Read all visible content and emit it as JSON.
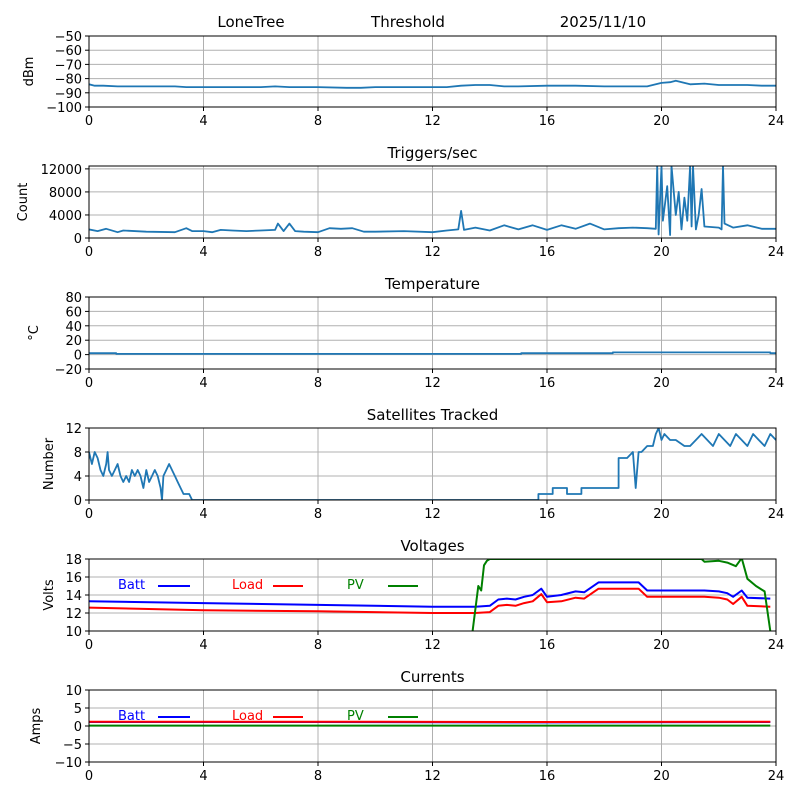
{
  "header": {
    "station": "LoneTree",
    "mode": "Threshold",
    "date": "2025/11/10"
  },
  "chart_data": [
    {
      "id": "signal",
      "type": "line",
      "title": "",
      "xlabel": "",
      "ylabel": "dBm",
      "xlim": [
        0,
        24
      ],
      "ylim": [
        -100,
        -50
      ],
      "xticks": [
        0,
        4,
        8,
        12,
        16,
        20,
        24
      ],
      "yticks": [
        -100,
        -90,
        -80,
        -70,
        -60,
        -50
      ],
      "ytick_labels": [
        "−100",
        "−90",
        "−80",
        "−70",
        "−60",
        "−50"
      ],
      "grid": true,
      "series": [
        {
          "name": "dBm",
          "color": "#1f77b4",
          "x": [
            0,
            0.2,
            0.5,
            1.0,
            2.0,
            3.0,
            3.4,
            4.0,
            5.0,
            6.0,
            6.5,
            7.0,
            8.0,
            9.0,
            9.5,
            10.0,
            11.0,
            12.0,
            12.5,
            13.0,
            13.5,
            14.0,
            14.5,
            15.0,
            16.0,
            17.0,
            18.0,
            19.0,
            19.5,
            19.8,
            20.0,
            20.3,
            20.5,
            20.8,
            21.0,
            21.5,
            22.0,
            22.5,
            23.0,
            23.5,
            24.0
          ],
          "y": [
            -84,
            -85,
            -85,
            -85.5,
            -85.5,
            -85.5,
            -86,
            -86,
            -86,
            -86,
            -85.5,
            -86,
            -86,
            -86.5,
            -86.5,
            -86,
            -86,
            -86,
            -86,
            -85,
            -84.5,
            -84.5,
            -85.5,
            -85.5,
            -85,
            -85,
            -85.5,
            -85.5,
            -85.5,
            -84,
            -83,
            -82.5,
            -81.5,
            -83,
            -84,
            -83.5,
            -84.5,
            -84.5,
            -84.5,
            -85,
            -85
          ]
        }
      ]
    },
    {
      "id": "triggers",
      "type": "line",
      "title": "Triggers/sec",
      "xlabel": "",
      "ylabel": "Count",
      "xlim": [
        0,
        24
      ],
      "ylim": [
        0,
        12500
      ],
      "xticks": [
        0,
        4,
        8,
        12,
        16,
        20,
        24
      ],
      "yticks": [
        0,
        4000,
        8000,
        12000
      ],
      "ytick_labels": [
        "0",
        "4000",
        "8000",
        "12000"
      ],
      "grid": true,
      "series": [
        {
          "name": "Count",
          "color": "#1f77b4",
          "x": [
            0,
            0.3,
            0.6,
            1.0,
            1.2,
            2.0,
            3.0,
            3.4,
            3.6,
            4.0,
            4.3,
            4.6,
            5.0,
            5.5,
            6.0,
            6.5,
            6.6,
            6.8,
            7.0,
            7.2,
            7.5,
            8.0,
            8.4,
            8.8,
            9.2,
            9.6,
            10.0,
            11.0,
            12.0,
            12.5,
            12.9,
            13.0,
            13.1,
            13.5,
            14.0,
            14.5,
            15.0,
            15.5,
            16.0,
            16.5,
            17.0,
            17.5,
            18.0,
            18.5,
            19.0,
            19.5,
            19.8,
            19.85,
            19.9,
            20.0,
            20.05,
            20.2,
            20.3,
            20.35,
            20.5,
            20.6,
            20.7,
            20.8,
            20.9,
            21.0,
            21.05,
            21.1,
            21.2,
            21.3,
            21.4,
            21.5,
            22.0,
            22.1,
            22.15,
            22.2,
            22.5,
            23.0,
            23.5,
            24.0
          ],
          "y": [
            1500,
            1200,
            1600,
            1000,
            1300,
            1100,
            1000,
            1700,
            1200,
            1200,
            1000,
            1400,
            1300,
            1200,
            1300,
            1400,
            2500,
            1200,
            2500,
            1200,
            1100,
            1000,
            1700,
            1600,
            1700,
            1100,
            1100,
            1200,
            1000,
            1300,
            1500,
            4700,
            1400,
            1800,
            1300,
            2200,
            1500,
            2200,
            1400,
            2200,
            1600,
            2500,
            1500,
            1700,
            1800,
            1700,
            1600,
            12500,
            600,
            12500,
            3000,
            9000,
            500,
            12500,
            4000,
            8000,
            1500,
            7000,
            3000,
            12500,
            2000,
            12500,
            1500,
            4000,
            8500,
            2000,
            1800,
            1500,
            12500,
            2500,
            1800,
            2200,
            1600,
            1600
          ]
        }
      ]
    },
    {
      "id": "temperature",
      "type": "line",
      "title": "Temperature",
      "xlabel": "",
      "ylabel": "°C",
      "xlim": [
        0,
        24
      ],
      "ylim": [
        -20,
        80
      ],
      "xticks": [
        0,
        4,
        8,
        12,
        16,
        20,
        24
      ],
      "yticks": [
        -20,
        0,
        20,
        40,
        60,
        80
      ],
      "ytick_labels": [
        "−20",
        "0",
        "20",
        "40",
        "60",
        "80"
      ],
      "grid": true,
      "series": [
        {
          "name": "Temperature",
          "color": "#1f77b4",
          "x": [
            0,
            0.95,
            0.95,
            15.1,
            15.1,
            18.3,
            18.3,
            23.8,
            23.8,
            24
          ],
          "y": [
            2,
            2,
            1,
            1,
            2,
            2,
            3,
            3,
            2,
            2
          ]
        }
      ]
    },
    {
      "id": "satellites",
      "type": "line",
      "title": "Satellites Tracked",
      "xlabel": "",
      "ylabel": "Number",
      "xlim": [
        0,
        24
      ],
      "ylim": [
        0,
        12
      ],
      "xticks": [
        0,
        4,
        8,
        12,
        16,
        20,
        24
      ],
      "yticks": [
        0,
        4,
        8,
        12
      ],
      "ytick_labels": [
        "0",
        "4",
        "8",
        "12"
      ],
      "grid": true,
      "series": [
        {
          "name": "Number",
          "color": "#1f77b4",
          "x": [
            0,
            0.1,
            0.2,
            0.3,
            0.4,
            0.5,
            0.6,
            0.65,
            0.7,
            0.8,
            0.9,
            1.0,
            1.1,
            1.2,
            1.3,
            1.4,
            1.5,
            1.6,
            1.7,
            1.8,
            1.9,
            2.0,
            2.1,
            2.2,
            2.3,
            2.4,
            2.5,
            2.55,
            2.6,
            2.7,
            2.8,
            2.9,
            3.0,
            3.1,
            3.2,
            3.3,
            3.4,
            3.5,
            3.6,
            3.7,
            15.7,
            15.7,
            16.2,
            16.2,
            16.7,
            16.7,
            17.2,
            17.2,
            18.5,
            18.5,
            18.8,
            19.0,
            19.1,
            19.2,
            19.3,
            19.5,
            19.7,
            19.8,
            19.9,
            20.0,
            20.1,
            20.3,
            20.5,
            20.8,
            21.0,
            21.2,
            21.4,
            21.6,
            21.8,
            22.0,
            22.2,
            22.4,
            22.6,
            22.8,
            23.0,
            23.2,
            23.4,
            23.6,
            23.8,
            24.0
          ],
          "y": [
            8,
            6,
            8,
            7,
            5,
            4,
            6,
            8,
            5,
            4,
            5,
            6,
            4,
            3,
            4,
            3,
            5,
            4,
            5,
            4,
            2,
            5,
            3,
            4,
            5,
            4,
            2,
            0,
            4,
            5,
            6,
            5,
            4,
            3,
            2,
            1,
            1,
            1,
            0,
            0,
            0,
            1,
            1,
            2,
            2,
            1,
            1,
            2,
            2,
            7,
            7,
            8,
            2,
            8,
            8,
            9,
            9,
            11,
            12,
            10,
            11,
            10,
            10,
            9,
            9,
            10,
            11,
            10,
            9,
            11,
            10,
            9,
            11,
            10,
            9,
            11,
            10,
            9,
            11,
            10
          ]
        }
      ]
    },
    {
      "id": "voltages",
      "type": "line",
      "title": "Voltages",
      "xlabel": "",
      "ylabel": "Volts",
      "xlim": [
        0,
        24
      ],
      "ylim": [
        10,
        18
      ],
      "xticks": [
        0,
        4,
        8,
        12,
        16,
        20,
        24
      ],
      "yticks": [
        10,
        12,
        14,
        16,
        18
      ],
      "ytick_labels": [
        "10",
        "12",
        "14",
        "16",
        "18"
      ],
      "grid": true,
      "legend": "top-left, inline",
      "series": [
        {
          "name": "Batt",
          "color": "#0000ff",
          "x": [
            0,
            4,
            8,
            12,
            13.5,
            14.0,
            14.3,
            14.6,
            14.9,
            15.2,
            15.5,
            15.8,
            16.0,
            16.5,
            17.0,
            17.3,
            17.8,
            19.2,
            19.5,
            21.5,
            22.0,
            22.3,
            22.5,
            22.8,
            23.0,
            23.8
          ],
          "y": [
            13.3,
            13.1,
            12.9,
            12.7,
            12.7,
            12.8,
            13.5,
            13.6,
            13.5,
            13.8,
            14.0,
            14.7,
            13.8,
            14.0,
            14.4,
            14.3,
            15.4,
            15.4,
            14.5,
            14.5,
            14.4,
            14.2,
            13.8,
            14.5,
            13.7,
            13.6
          ]
        },
        {
          "name": "Load",
          "color": "#ff0000",
          "x": [
            0,
            4,
            8,
            12,
            13.5,
            14.0,
            14.3,
            14.6,
            14.9,
            15.2,
            15.5,
            15.8,
            16.0,
            16.5,
            17.0,
            17.3,
            17.8,
            19.2,
            19.5,
            21.5,
            22.0,
            22.3,
            22.5,
            22.8,
            23.0,
            23.8
          ],
          "y": [
            12.6,
            12.3,
            12.2,
            12.0,
            12.0,
            12.1,
            12.8,
            12.9,
            12.8,
            13.1,
            13.3,
            14.1,
            13.2,
            13.3,
            13.7,
            13.6,
            14.7,
            14.7,
            13.8,
            13.8,
            13.7,
            13.5,
            13.0,
            13.8,
            12.8,
            12.7
          ]
        },
        {
          "name": "PV",
          "color": "#008000",
          "x": [
            13.4,
            13.6,
            13.7,
            13.8,
            13.9,
            14.0,
            21.4,
            21.5,
            22.0,
            22.3,
            22.6,
            22.8,
            23.0,
            23.3,
            23.6,
            23.8
          ],
          "y": [
            10.0,
            15.0,
            14.5,
            17.3,
            17.8,
            18.0,
            18.0,
            17.7,
            17.8,
            17.6,
            17.2,
            18.1,
            15.8,
            15.0,
            14.4,
            10.0
          ]
        }
      ]
    },
    {
      "id": "currents",
      "type": "line",
      "title": "Currents",
      "xlabel": "",
      "ylabel": "Amps",
      "xlim": [
        0,
        24
      ],
      "ylim": [
        -10,
        10
      ],
      "xticks": [
        0,
        4,
        8,
        12,
        16,
        20,
        24
      ],
      "yticks": [
        -10,
        -5,
        0,
        5,
        10
      ],
      "ytick_labels": [
        "−10",
        "−5",
        "0",
        "5",
        "10"
      ],
      "grid": true,
      "legend": "top-left, inline",
      "series": [
        {
          "name": "Batt",
          "color": "#0000ff",
          "x": [
            0,
            8,
            16,
            23.8
          ],
          "y": [
            1.1,
            1.1,
            1.0,
            1.1
          ]
        },
        {
          "name": "Load",
          "color": "#ff0000",
          "x": [
            0,
            8,
            16,
            23.8
          ],
          "y": [
            1.2,
            1.2,
            1.1,
            1.2
          ]
        },
        {
          "name": "PV",
          "color": "#008000",
          "x": [
            0,
            8,
            16,
            23.8
          ],
          "y": [
            0.1,
            0.1,
            0.1,
            0.1
          ]
        }
      ]
    }
  ]
}
